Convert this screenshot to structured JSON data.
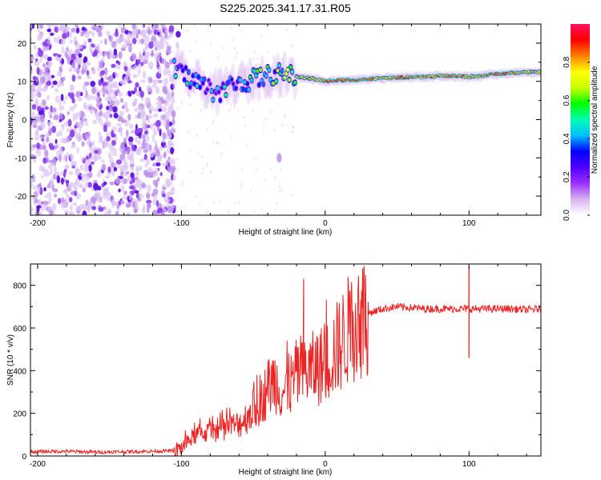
{
  "title": "S225.2025.341.17.31.R05",
  "chart_data": [
    {
      "type": "heatmap",
      "name": "spectrogram",
      "xlabel": "Height of straight line (km)",
      "ylabel": "Frequency (Hz)",
      "xlim": [
        -205,
        150
      ],
      "ylim": [
        -25,
        25
      ],
      "xticks": [
        -200,
        -100,
        0,
        100
      ],
      "yticks": [
        -20,
        -10,
        0,
        10,
        20
      ],
      "colorbar": {
        "label": "Normalized spectral amplitude",
        "range": [
          0,
          1
        ],
        "ticks": [
          "0.0",
          "0.2",
          "0.4",
          "0.6",
          "0.8"
        ],
        "tick_values": [
          0.0,
          0.2,
          0.4,
          0.6,
          0.8
        ],
        "colormap": [
          "#ffffff",
          "#d8b4f0",
          "#9b30ff",
          "#5000ff",
          "#0000ff",
          "#00bfff",
          "#00ffb0",
          "#00ff00",
          "#c8ff00",
          "#ffff00",
          "#ff8000",
          "#ff0000",
          "#ff1060"
        ]
      },
      "noise_region_x": [
        -205,
        -105
      ],
      "ridge": {
        "x": [
          -105,
          -95,
          -85,
          -75,
          -65,
          -55,
          -45,
          -35,
          -25,
          -15,
          -5,
          0,
          10,
          20,
          30,
          40,
          50,
          60,
          70,
          80,
          90,
          100,
          110,
          120,
          130,
          140,
          150
        ],
        "freq": [
          13,
          11,
          9,
          7,
          9,
          10,
          11,
          12,
          11.5,
          11,
          10.5,
          10,
          10.3,
          10.4,
          10.6,
          10.8,
          11,
          11,
          11.2,
          11.4,
          11.4,
          11.2,
          11.5,
          12,
          12.2,
          12.3,
          12.5
        ],
        "amplitude": [
          0.55,
          0.5,
          0.45,
          0.45,
          0.5,
          0.55,
          0.6,
          0.62,
          0.7,
          0.75,
          0.8,
          0.9,
          0.95,
          0.95,
          0.9,
          0.85,
          0.88,
          0.95,
          0.9,
          0.85,
          0.95,
          0.8,
          0.9,
          0.95,
          0.85,
          0.8,
          0.75
        ]
      }
    },
    {
      "type": "line",
      "name": "snr",
      "xlabel": "Height of straight line (km)",
      "ylabel": "SNR (10 * v/v)",
      "xlim": [
        -205,
        150
      ],
      "ylim": [
        0,
        900
      ],
      "xticks": [
        -200,
        -100,
        0,
        100
      ],
      "yticks": [
        0,
        200,
        400,
        600,
        800
      ],
      "color": "#ee2222",
      "x": [
        -205,
        -180,
        -160,
        -140,
        -120,
        -105,
        -100,
        -95,
        -90,
        -85,
        -80,
        -75,
        -70,
        -65,
        -60,
        -55,
        -50,
        -45,
        -40,
        -35,
        -30,
        -25,
        -20,
        -15,
        -10,
        -5,
        0,
        5,
        10,
        15,
        20,
        25,
        30,
        35,
        40,
        45,
        50,
        60,
        70,
        80,
        90,
        95,
        100,
        105,
        110,
        120,
        130,
        140,
        150
      ],
      "y": [
        20,
        22,
        18,
        20,
        22,
        25,
        40,
        70,
        100,
        110,
        110,
        120,
        130,
        140,
        150,
        180,
        220,
        250,
        320,
        360,
        300,
        320,
        380,
        400,
        400,
        420,
        430,
        480,
        520,
        580,
        620,
        650,
        670,
        680,
        690,
        695,
        700,
        695,
        690,
        690,
        690,
        690,
        690,
        690,
        690,
        690,
        690,
        685,
        690
      ],
      "spikes": [
        {
          "x": -15,
          "y": 830
        },
        {
          "x": 100,
          "y": 890
        },
        {
          "x": 100,
          "y": 460
        }
      ]
    }
  ]
}
